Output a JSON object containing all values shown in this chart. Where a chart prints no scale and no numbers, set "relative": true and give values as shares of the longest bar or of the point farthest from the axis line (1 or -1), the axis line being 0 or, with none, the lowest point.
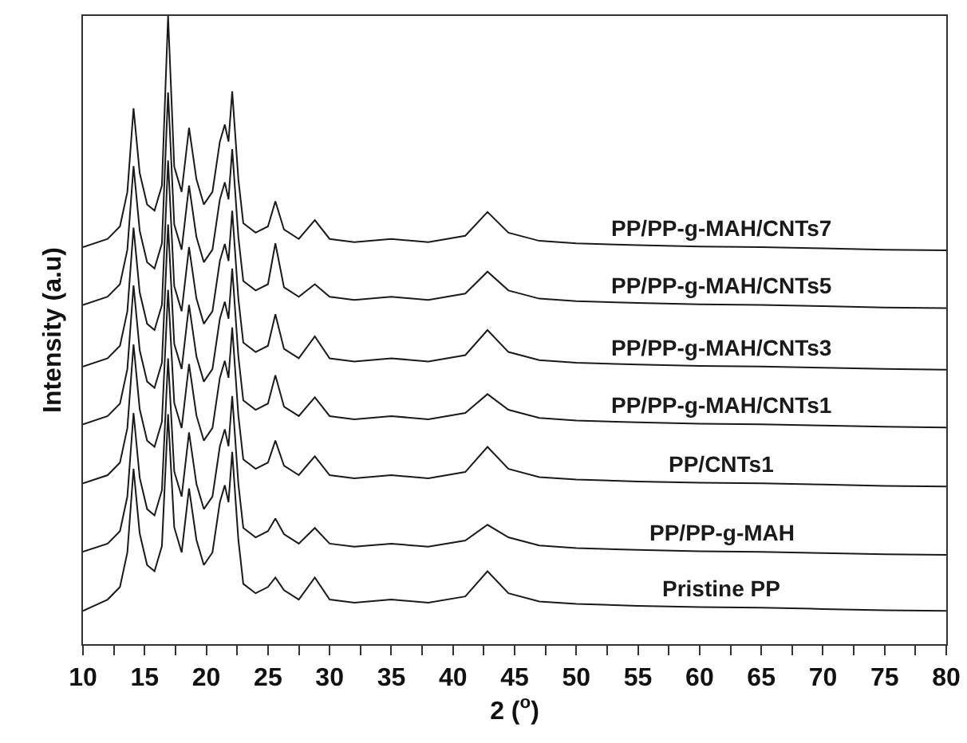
{
  "chart_data": {
    "type": "line",
    "relative": true,
    "xlabel": "2 ($^{o}$)",
    "ylabel": "Intensity (a.u)",
    "legend": false,
    "grid": false,
    "marker": "none",
    "line_style": "solid",
    "x": [
      10,
      12,
      13,
      13.6,
      14.1,
      14.6,
      15.2,
      15.8,
      16.4,
      16.9,
      17.4,
      18,
      18.6,
      19.2,
      19.8,
      20.5,
      21.1,
      21.5,
      21.8,
      22.1,
      22.6,
      23,
      24,
      25,
      25.6,
      26.3,
      27.5,
      28.8,
      30,
      32,
      35,
      38,
      41,
      42.8,
      44.5,
      47,
      50,
      55,
      60,
      65,
      70,
      75,
      80
    ],
    "xlim": [
      10,
      80
    ],
    "xticks": [
      10,
      {
        "value": 12.5,
        "label": null
      },
      15,
      {
        "value": 17.5,
        "label": null
      },
      20,
      {
        "value": 22.5,
        "label": null
      },
      25,
      {
        "value": 27.5,
        "label": null
      },
      30,
      {
        "value": 32.5,
        "label": null
      },
      35,
      {
        "value": 37.5,
        "label": null
      },
      40,
      {
        "value": 42.5,
        "label": null
      },
      45,
      {
        "value": 47.5,
        "label": null
      },
      50,
      {
        "value": 52.5,
        "label": null
      },
      55,
      {
        "value": 57.5,
        "label": null
      },
      60,
      {
        "value": 62.5,
        "label": null
      },
      65,
      {
        "value": 67.5,
        "label": null
      },
      70,
      {
        "value": 72.5,
        "label": null
      },
      75,
      {
        "value": 77.5,
        "label": null
      },
      80
    ],
    "series": [
      {
        "name": "PP/PP-g-MAH/CNTs7",
        "color": "#1a1a1a",
        "values": [
          0.632,
          0.645,
          0.665,
          0.72,
          0.853,
          0.75,
          0.7,
          0.69,
          0.73,
          1.0,
          0.76,
          0.72,
          0.822,
          0.74,
          0.7,
          0.72,
          0.8,
          0.827,
          0.8,
          0.88,
          0.74,
          0.67,
          0.655,
          0.665,
          0.705,
          0.66,
          0.645,
          0.675,
          0.645,
          0.64,
          0.645,
          0.64,
          0.65,
          0.688,
          0.655,
          0.642,
          0.638,
          0.635,
          0.633,
          0.632,
          0.63,
          0.628,
          0.627
        ]
      },
      {
        "name": "PP/PP-g-MAH/CNTs5",
        "color": "#1a1a1a",
        "values": [
          0.54,
          0.553,
          0.573,
          0.628,
          0.761,
          0.658,
          0.608,
          0.598,
          0.638,
          0.878,
          0.668,
          0.628,
          0.73,
          0.648,
          0.608,
          0.628,
          0.708,
          0.735,
          0.708,
          0.788,
          0.648,
          0.578,
          0.563,
          0.573,
          0.638,
          0.568,
          0.553,
          0.573,
          0.553,
          0.548,
          0.553,
          0.548,
          0.558,
          0.593,
          0.563,
          0.55,
          0.546,
          0.543,
          0.541,
          0.54,
          0.538,
          0.536,
          0.535
        ]
      },
      {
        "name": "PP/PP-g-MAH/CNTs3",
        "color": "#1a1a1a",
        "values": [
          0.442,
          0.455,
          0.475,
          0.53,
          0.663,
          0.56,
          0.51,
          0.5,
          0.54,
          0.77,
          0.57,
          0.53,
          0.632,
          0.55,
          0.51,
          0.53,
          0.61,
          0.637,
          0.61,
          0.69,
          0.55,
          0.48,
          0.465,
          0.475,
          0.525,
          0.47,
          0.455,
          0.49,
          0.455,
          0.45,
          0.455,
          0.45,
          0.46,
          0.5,
          0.465,
          0.452,
          0.448,
          0.445,
          0.443,
          0.442,
          0.44,
          0.438,
          0.437
        ]
      },
      {
        "name": "PP/PP-g-MAH/CNTs1",
        "color": "#1a1a1a",
        "values": [
          0.35,
          0.363,
          0.383,
          0.438,
          0.571,
          0.468,
          0.418,
          0.408,
          0.448,
          0.668,
          0.478,
          0.438,
          0.54,
          0.458,
          0.418,
          0.438,
          0.518,
          0.545,
          0.518,
          0.598,
          0.458,
          0.388,
          0.373,
          0.383,
          0.428,
          0.378,
          0.363,
          0.393,
          0.363,
          0.358,
          0.363,
          0.358,
          0.368,
          0.398,
          0.373,
          0.36,
          0.356,
          0.353,
          0.351,
          0.35,
          0.348,
          0.346,
          0.345
        ]
      },
      {
        "name": "PP/CNTs1",
        "color": "#1a1a1a",
        "values": [
          0.256,
          0.269,
          0.289,
          0.344,
          0.477,
          0.374,
          0.324,
          0.314,
          0.354,
          0.564,
          0.384,
          0.344,
          0.446,
          0.364,
          0.324,
          0.344,
          0.424,
          0.451,
          0.424,
          0.504,
          0.364,
          0.294,
          0.279,
          0.289,
          0.324,
          0.284,
          0.269,
          0.299,
          0.269,
          0.264,
          0.269,
          0.264,
          0.274,
          0.314,
          0.279,
          0.266,
          0.262,
          0.259,
          0.257,
          0.256,
          0.254,
          0.252,
          0.251
        ]
      },
      {
        "name": "PP/PP-g-MAH",
        "color": "#1a1a1a",
        "values": [
          0.147,
          0.16,
          0.18,
          0.235,
          0.368,
          0.265,
          0.215,
          0.205,
          0.245,
          0.455,
          0.275,
          0.235,
          0.337,
          0.255,
          0.215,
          0.235,
          0.315,
          0.342,
          0.315,
          0.395,
          0.255,
          0.185,
          0.17,
          0.18,
          0.2,
          0.175,
          0.16,
          0.185,
          0.16,
          0.155,
          0.16,
          0.155,
          0.165,
          0.19,
          0.17,
          0.157,
          0.153,
          0.15,
          0.148,
          0.147,
          0.145,
          0.143,
          0.142
        ]
      },
      {
        "name": "Pristine PP",
        "color": "#1a1a1a",
        "values": [
          0.053,
          0.071,
          0.091,
          0.146,
          0.279,
          0.176,
          0.126,
          0.116,
          0.156,
          0.366,
          0.186,
          0.146,
          0.248,
          0.166,
          0.126,
          0.146,
          0.226,
          0.253,
          0.226,
          0.306,
          0.166,
          0.096,
          0.081,
          0.091,
          0.106,
          0.086,
          0.071,
          0.106,
          0.071,
          0.066,
          0.071,
          0.066,
          0.076,
          0.116,
          0.081,
          0.068,
          0.064,
          0.061,
          0.059,
          0.058,
          0.056,
          0.054,
          0.053
        ]
      }
    ]
  }
}
